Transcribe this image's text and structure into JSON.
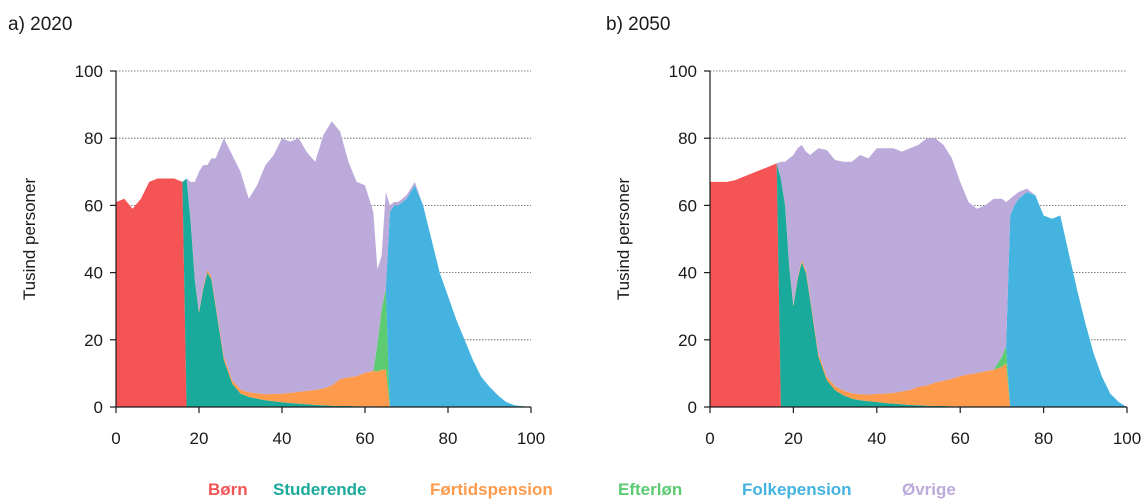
{
  "legend": [
    {
      "label": "Børn",
      "color": "#f45454"
    },
    {
      "label": "Studerende",
      "color": "#1aaa9b"
    },
    {
      "label": "Førtidspension",
      "color": "#fd9a4b"
    },
    {
      "label": "Efterløn",
      "color": "#5ccb72"
    },
    {
      "label": "Folkepension",
      "color": "#44b3e0"
    },
    {
      "label": "Øvrige",
      "color": "#bcaadb"
    }
  ],
  "chart_data": [
    {
      "type": "area",
      "stacked": true,
      "title": "a) 2020",
      "xlabel": "",
      "ylabel": "Tusind personer",
      "xlim": [
        0,
        100
      ],
      "ylim": [
        0,
        100
      ],
      "xticks": [
        0,
        20,
        40,
        60,
        80,
        100
      ],
      "yticks": [
        0,
        20,
        40,
        60,
        80,
        100
      ],
      "grid": "horizontal dotted",
      "legend_position": "bottom",
      "x": [
        0,
        2,
        4,
        6,
        8,
        10,
        12,
        14,
        16,
        17,
        18,
        19,
        20,
        21,
        22,
        23,
        24,
        26,
        28,
        30,
        32,
        34,
        36,
        38,
        40,
        42,
        44,
        46,
        48,
        50,
        52,
        54,
        56,
        58,
        60,
        62,
        63,
        64,
        65,
        66,
        67,
        68,
        70,
        72,
        74,
        76,
        78,
        80,
        82,
        84,
        86,
        88,
        90,
        92,
        94,
        96,
        98,
        100
      ],
      "series": [
        {
          "name": "Børn",
          "values": [
            61,
            62,
            59,
            62,
            67,
            68,
            68,
            68,
            67,
            0,
            0,
            0,
            0,
            0,
            0,
            0,
            0,
            0,
            0,
            0,
            0,
            0,
            0,
            0,
            0,
            0,
            0,
            0,
            0,
            0,
            0,
            0,
            0,
            0,
            0,
            0,
            0,
            0,
            0,
            0,
            0,
            0,
            0,
            0,
            0,
            0,
            0,
            0,
            0,
            0,
            0,
            0,
            0,
            0,
            0,
            0,
            0,
            0
          ]
        },
        {
          "name": "Studerende",
          "values": [
            0,
            0,
            0,
            0,
            0,
            0,
            0,
            0,
            0,
            68,
            55,
            38,
            28,
            35,
            40,
            38,
            30,
            14,
            7,
            4,
            3,
            2.5,
            2,
            1.7,
            1.4,
            1.2,
            1,
            0.8,
            0.6,
            0.5,
            0.4,
            0.3,
            0.3,
            0.2,
            0.2,
            0.2,
            0.1,
            0.1,
            0.1,
            0,
            0,
            0,
            0,
            0,
            0,
            0,
            0,
            0,
            0,
            0,
            0,
            0,
            0,
            0,
            0,
            0,
            0,
            0
          ]
        },
        {
          "name": "Førtidspension",
          "values": [
            0,
            0,
            0,
            0,
            0,
            0,
            0,
            0,
            0,
            0,
            0.3,
            0.4,
            0.5,
            0.6,
            0.7,
            0.8,
            0.8,
            1,
            1,
            1.2,
            1.4,
            1.6,
            1.8,
            2.2,
            2.6,
            3,
            3.5,
            4,
            4.5,
            5,
            6,
            8,
            8.5,
            9,
            10,
            10.5,
            10.5,
            11,
            11,
            0,
            0,
            0,
            0,
            0,
            0,
            0,
            0,
            0,
            0,
            0,
            0,
            0,
            0,
            0,
            0,
            0,
            0,
            0
          ]
        },
        {
          "name": "Efterløn",
          "values": [
            0,
            0,
            0,
            0,
            0,
            0,
            0,
            0,
            0,
            0,
            0,
            0,
            0,
            0,
            0,
            0,
            0,
            0,
            0,
            0,
            0,
            0,
            0,
            0,
            0,
            0,
            0,
            0,
            0,
            0,
            0,
            0,
            0,
            0,
            0,
            0,
            8,
            18,
            24,
            0,
            0,
            0,
            0,
            0,
            0,
            0,
            0,
            0,
            0,
            0,
            0,
            0,
            0,
            0,
            0,
            0,
            0,
            0
          ]
        },
        {
          "name": "Folkepension",
          "values": [
            0,
            0,
            0,
            0,
            0,
            0,
            0,
            0,
            0,
            0,
            0,
            0,
            0,
            0,
            0,
            0,
            0,
            0,
            0,
            0,
            0,
            0,
            0,
            0,
            0,
            0,
            0,
            0,
            0,
            0,
            0,
            0,
            0,
            0,
            0,
            0,
            0,
            0,
            0,
            58,
            60,
            60,
            62,
            66,
            60,
            50,
            40,
            33,
            26,
            20,
            14,
            9,
            6,
            3.5,
            1.5,
            0.5,
            0.2,
            0
          ]
        },
        {
          "name": "Øvrige",
          "values": [
            0,
            0,
            0,
            0,
            0,
            0,
            0,
            0,
            0,
            0,
            11.7,
            28.6,
            41.5,
            36.4,
            31.3,
            35.2,
            43.2,
            65,
            67,
            64.8,
            57.6,
            61.9,
            68.2,
            71.1,
            76,
            74.8,
            75.5,
            71,
            67.9,
            75.5,
            78.6,
            73.7,
            64.2,
            57.8,
            55.8,
            47.3,
            22.4,
            15.9,
            28.9,
            2,
            1,
            1,
            1,
            1,
            0,
            0,
            0,
            0,
            0,
            0,
            0,
            0,
            0,
            0,
            0,
            0,
            0,
            0
          ]
        }
      ]
    },
    {
      "type": "area",
      "stacked": true,
      "title": "b) 2050",
      "xlabel": "",
      "ylabel": "Tusind personer",
      "xlim": [
        0,
        100
      ],
      "ylim": [
        0,
        100
      ],
      "xticks": [
        0,
        20,
        40,
        60,
        80,
        100
      ],
      "yticks": [
        0,
        20,
        40,
        60,
        80,
        100
      ],
      "grid": "horizontal dotted",
      "legend_position": "bottom",
      "x": [
        0,
        2,
        4,
        6,
        8,
        10,
        12,
        14,
        16,
        17,
        18,
        19,
        20,
        21,
        22,
        23,
        24,
        26,
        28,
        30,
        32,
        34,
        36,
        38,
        40,
        42,
        44,
        46,
        48,
        50,
        52,
        54,
        56,
        58,
        60,
        62,
        64,
        66,
        68,
        70,
        71,
        72,
        73,
        74,
        76,
        78,
        80,
        82,
        84,
        86,
        88,
        90,
        92,
        94,
        96,
        98,
        100
      ],
      "series": [
        {
          "name": "Børn",
          "values": [
            67,
            67,
            67,
            67.5,
            68.5,
            69.5,
            70.5,
            71.5,
            72.5,
            0,
            0,
            0,
            0,
            0,
            0,
            0,
            0,
            0,
            0,
            0,
            0,
            0,
            0,
            0,
            0,
            0,
            0,
            0,
            0,
            0,
            0,
            0,
            0,
            0,
            0,
            0,
            0,
            0,
            0,
            0,
            0,
            0,
            0,
            0,
            0,
            0,
            0,
            0,
            0,
            0,
            0,
            0,
            0,
            0,
            0,
            0,
            0
          ]
        },
        {
          "name": "Studerende",
          "values": [
            0,
            0,
            0,
            0,
            0,
            0,
            0,
            0,
            0,
            68,
            60,
            42,
            30,
            38,
            43,
            40,
            32,
            15,
            8,
            5,
            3.5,
            2.5,
            2,
            1.7,
            1.5,
            1.2,
            1,
            0.8,
            0.6,
            0.5,
            0.4,
            0.3,
            0.3,
            0.2,
            0.2,
            0.2,
            0.1,
            0.1,
            0.1,
            0,
            0,
            0,
            0,
            0,
            0,
            0,
            0,
            0,
            0,
            0,
            0,
            0,
            0,
            0,
            0,
            0,
            0
          ]
        },
        {
          "name": "Førtidspension",
          "values": [
            0,
            0,
            0,
            0,
            0,
            0,
            0,
            0,
            0,
            0,
            0.3,
            0.4,
            0.5,
            0.6,
            0.7,
            0.8,
            0.8,
            1,
            1,
            1.2,
            1.4,
            1.6,
            1.8,
            2,
            2.4,
            2.8,
            3.2,
            3.8,
            4.5,
            5.5,
            6,
            7,
            7.5,
            8.2,
            9,
            9.5,
            10,
            10.5,
            11,
            12,
            13,
            0,
            0,
            0,
            0,
            0,
            0,
            0,
            0,
            0,
            0,
            0,
            0,
            0,
            0,
            0,
            0
          ]
        },
        {
          "name": "Efterløn",
          "values": [
            0,
            0,
            0,
            0,
            0,
            0,
            0,
            0,
            0,
            0,
            0,
            0,
            0,
            0,
            0,
            0,
            0,
            0,
            0,
            0,
            0,
            0,
            0,
            0,
            0,
            0,
            0,
            0,
            0,
            0,
            0,
            0,
            0,
            0,
            0,
            0,
            0,
            0,
            0,
            3,
            5,
            0,
            0,
            0,
            0,
            0,
            0,
            0,
            0,
            0,
            0,
            0,
            0,
            0,
            0,
            0,
            0
          ]
        },
        {
          "name": "Folkepension",
          "values": [
            0,
            0,
            0,
            0,
            0,
            0,
            0,
            0,
            0,
            0,
            0,
            0,
            0,
            0,
            0,
            0,
            0,
            0,
            0,
            0,
            0,
            0,
            0,
            0,
            0,
            0,
            0,
            0,
            0,
            0,
            0,
            0,
            0,
            0,
            0,
            0,
            0,
            0,
            0,
            0,
            0,
            57,
            60,
            62,
            64,
            63,
            57,
            56,
            57,
            46,
            35,
            25,
            16,
            9,
            4,
            1.5,
            0
          ]
        },
        {
          "name": "Øvrige",
          "values": [
            0,
            0,
            0,
            0,
            0,
            0,
            0,
            0,
            0,
            5,
            12.7,
            31.6,
            44.5,
            38.4,
            34.3,
            35.2,
            42.2,
            61,
            67.5,
            67.3,
            68.1,
            68.9,
            71.2,
            70.3,
            73.1,
            73,
            72.8,
            71.4,
            71.9,
            72,
            73.6,
            72.7,
            70.2,
            65.6,
            57.8,
            51.3,
            48.9,
            49.4,
            50.9,
            47,
            43,
            5,
            3,
            2,
            1,
            0,
            0,
            0,
            0,
            0,
            0,
            0,
            0,
            0,
            0,
            0,
            0
          ]
        }
      ]
    }
  ]
}
